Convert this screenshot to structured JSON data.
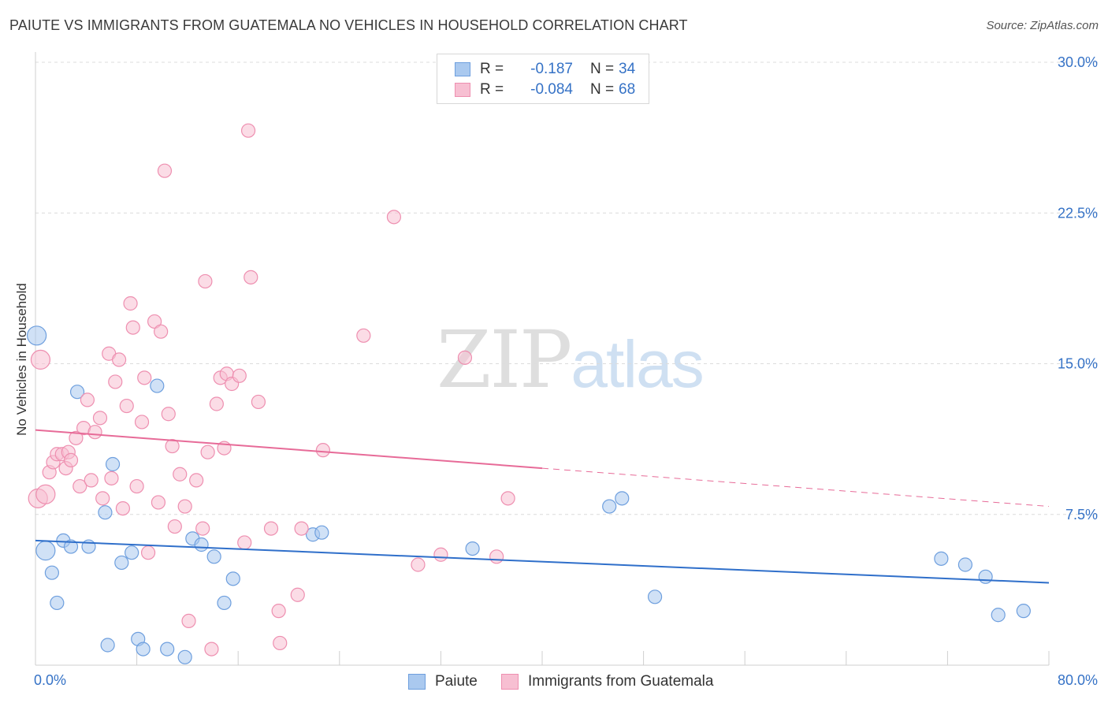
{
  "title": "PAIUTE VS IMMIGRANTS FROM GUATEMALA NO VEHICLES IN HOUSEHOLD CORRELATION CHART",
  "source": "Source: ZipAtlas.com",
  "watermark": {
    "zip": "ZIP",
    "atlas": "atlas"
  },
  "legend_top": {
    "rows": [
      {
        "r_label": "R =",
        "r_value": "-0.187",
        "n_label": "N =",
        "n_value": "34"
      },
      {
        "r_label": "R =",
        "r_value": "-0.084",
        "n_label": "N =",
        "n_value": "68"
      }
    ]
  },
  "legend_bottom": {
    "items": [
      {
        "label": "Paiute"
      },
      {
        "label": "Immigrants from Guatemala"
      }
    ]
  },
  "colors": {
    "paiute_fill": "#aac9ef",
    "paiute_stroke": "#6e9fde",
    "paiute_line": "#2f6fca",
    "guatemala_fill": "#f7bfd2",
    "guatemala_stroke": "#ee8fb0",
    "guatemala_line": "#e76b98",
    "tick_label": "#3572c6",
    "grid": "#dcdcdc"
  },
  "chart_data": {
    "type": "scatter",
    "title": "PAIUTE VS IMMIGRANTS FROM GUATEMALA NO VEHICLES IN HOUSEHOLD CORRELATION CHART",
    "xlabel": "",
    "ylabel": "No Vehicles in Household",
    "xlim": [
      0,
      80
    ],
    "ylim": [
      0,
      30
    ],
    "x_tick_labels": [
      "0.0%",
      "80.0%"
    ],
    "y_ticks": [
      7.5,
      15.0,
      22.5,
      30.0
    ],
    "y_tick_labels": [
      "7.5%",
      "15.0%",
      "22.5%",
      "30.0%"
    ],
    "grid": true,
    "legend_position": "top-center",
    "series": [
      {
        "name": "Paiute",
        "r": -0.187,
        "n": 34,
        "trend": {
          "x": [
            0,
            80
          ],
          "y": [
            6.2,
            4.1
          ],
          "dashed_from": null
        },
        "points": [
          [
            0.1,
            16.4
          ],
          [
            0.8,
            5.7
          ],
          [
            1.3,
            4.6
          ],
          [
            1.7,
            3.1
          ],
          [
            2.2,
            6.2
          ],
          [
            2.8,
            5.9
          ],
          [
            3.3,
            13.6
          ],
          [
            4.2,
            5.9
          ],
          [
            5.5,
            7.6
          ],
          [
            5.7,
            1.0
          ],
          [
            6.1,
            10.0
          ],
          [
            6.8,
            5.1
          ],
          [
            7.6,
            5.6
          ],
          [
            8.1,
            1.3
          ],
          [
            8.5,
            0.8
          ],
          [
            9.6,
            13.9
          ],
          [
            10.4,
            0.8
          ],
          [
            11.8,
            0.4
          ],
          [
            12.4,
            6.3
          ],
          [
            13.1,
            6.0
          ],
          [
            14.1,
            5.4
          ],
          [
            14.9,
            3.1
          ],
          [
            15.6,
            4.3
          ],
          [
            21.9,
            6.5
          ],
          [
            22.6,
            6.6
          ],
          [
            34.5,
            5.8
          ],
          [
            45.3,
            7.9
          ],
          [
            46.3,
            8.3
          ],
          [
            48.9,
            3.4
          ],
          [
            71.5,
            5.3
          ],
          [
            73.4,
            5.0
          ],
          [
            75.0,
            4.4
          ],
          [
            76.0,
            2.5
          ],
          [
            78.0,
            2.7
          ]
        ]
      },
      {
        "name": "Immigrants from Guatemala",
        "r": -0.084,
        "n": 68,
        "trend": {
          "x": [
            0,
            80
          ],
          "y": [
            11.7,
            7.9
          ],
          "dashed_from": 40
        },
        "points": [
          [
            0.2,
            8.3
          ],
          [
            0.4,
            15.2
          ],
          [
            0.8,
            8.5
          ],
          [
            1.1,
            9.6
          ],
          [
            1.4,
            10.1
          ],
          [
            1.7,
            10.5
          ],
          [
            2.1,
            10.5
          ],
          [
            2.4,
            9.8
          ],
          [
            2.6,
            10.6
          ],
          [
            2.8,
            10.2
          ],
          [
            3.2,
            11.3
          ],
          [
            3.5,
            8.9
          ],
          [
            3.8,
            11.8
          ],
          [
            4.1,
            13.2
          ],
          [
            4.4,
            9.2
          ],
          [
            4.7,
            11.6
          ],
          [
            5.1,
            12.3
          ],
          [
            5.3,
            8.3
          ],
          [
            5.8,
            15.5
          ],
          [
            6.0,
            9.3
          ],
          [
            6.3,
            14.1
          ],
          [
            6.6,
            15.2
          ],
          [
            6.9,
            7.8
          ],
          [
            7.2,
            12.9
          ],
          [
            7.5,
            18.0
          ],
          [
            7.7,
            16.8
          ],
          [
            8.0,
            8.9
          ],
          [
            8.4,
            12.1
          ],
          [
            8.6,
            14.3
          ],
          [
            8.9,
            5.6
          ],
          [
            9.4,
            17.1
          ],
          [
            9.7,
            8.1
          ],
          [
            9.9,
            16.6
          ],
          [
            10.2,
            24.6
          ],
          [
            10.5,
            12.5
          ],
          [
            10.8,
            10.9
          ],
          [
            11.0,
            6.9
          ],
          [
            11.4,
            9.5
          ],
          [
            11.8,
            7.9
          ],
          [
            12.1,
            2.2
          ],
          [
            12.7,
            9.2
          ],
          [
            13.2,
            6.8
          ],
          [
            13.4,
            19.1
          ],
          [
            13.6,
            10.6
          ],
          [
            13.9,
            0.8
          ],
          [
            14.3,
            13.0
          ],
          [
            14.6,
            14.3
          ],
          [
            14.9,
            10.8
          ],
          [
            15.1,
            14.5
          ],
          [
            15.5,
            14.0
          ],
          [
            16.1,
            14.4
          ],
          [
            16.5,
            6.1
          ],
          [
            16.8,
            26.6
          ],
          [
            17.0,
            19.3
          ],
          [
            17.6,
            13.1
          ],
          [
            18.6,
            6.8
          ],
          [
            19.2,
            2.7
          ],
          [
            19.3,
            1.1
          ],
          [
            20.7,
            3.5
          ],
          [
            21.0,
            6.8
          ],
          [
            22.7,
            10.7
          ],
          [
            25.9,
            16.4
          ],
          [
            28.3,
            22.3
          ],
          [
            30.2,
            5.0
          ],
          [
            32.0,
            5.5
          ],
          [
            33.9,
            15.3
          ],
          [
            36.4,
            5.4
          ],
          [
            37.3,
            8.3
          ]
        ]
      }
    ]
  }
}
